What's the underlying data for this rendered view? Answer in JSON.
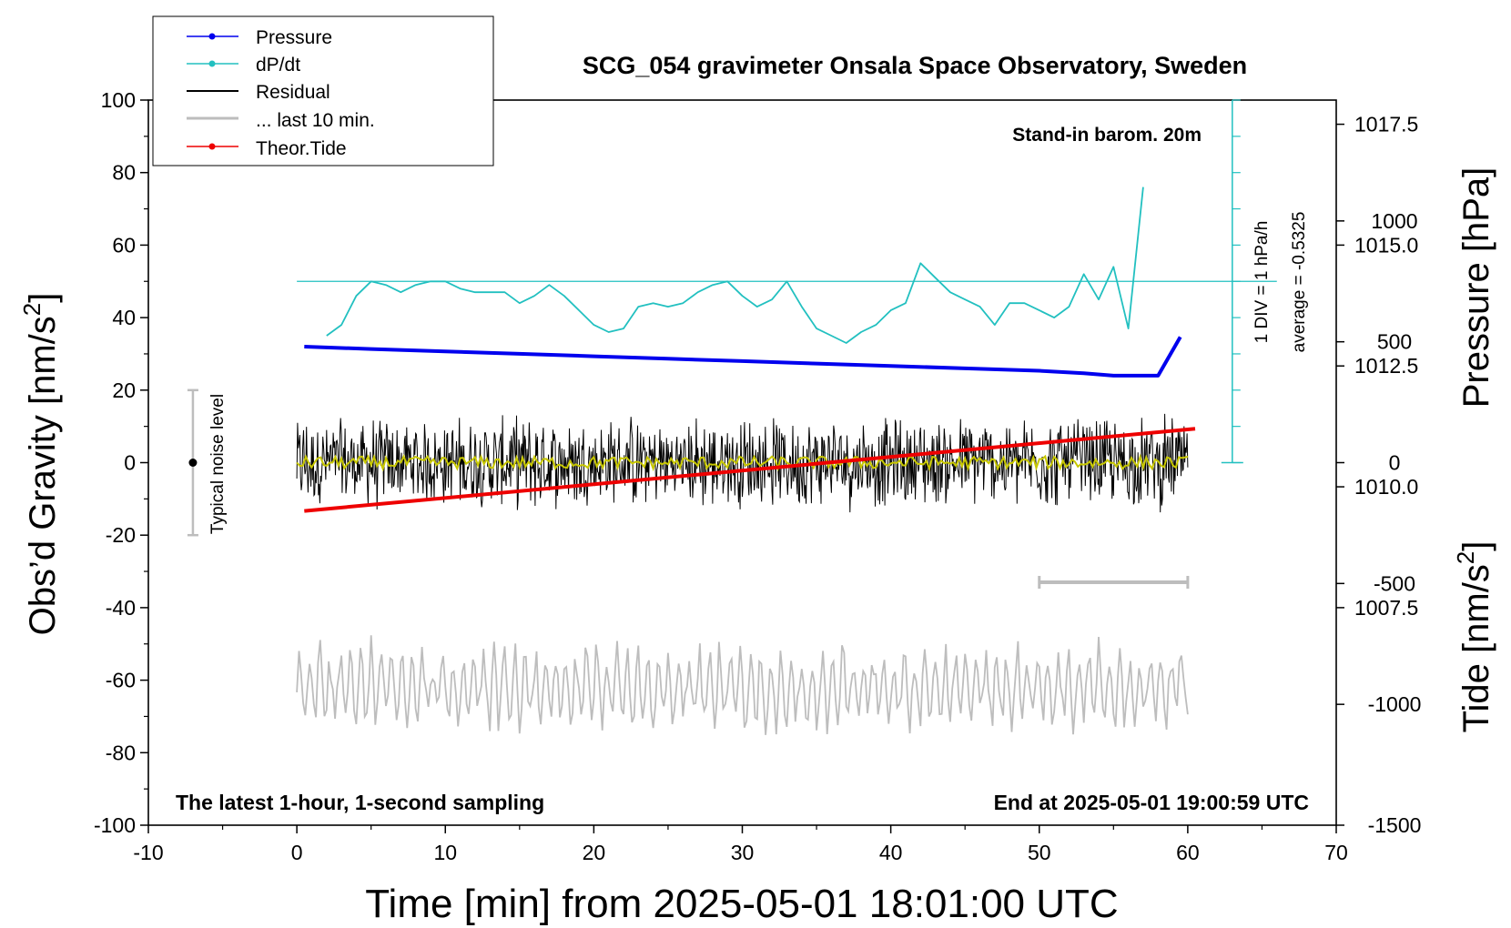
{
  "chart_data": {
    "type": "line",
    "title": "SCG_054 gravimeter Onsala Space Observatory, Sweden",
    "xlabel": "Time [min] from 2025-05-01 18:01:00 UTC",
    "ylabel_left": "Obs’d Gravity [nm/s²]",
    "ylabel_left_base": "Obs’d Gravity [nm/s",
    "ylabel_right_top": "Pressure [hPa]",
    "ylabel_right_bottom_base": "Tide [nm/s",
    "superscript": "2",
    "closing_bracket": "]",
    "xlim": [
      -10,
      70
    ],
    "ylim_left": [
      -100,
      100
    ],
    "x_ticks": [
      "-10",
      "0",
      "10",
      "20",
      "30",
      "40",
      "50",
      "60",
      "70"
    ],
    "y_ticks_left": [
      "100",
      "80",
      "60",
      "40",
      "20",
      "0",
      "-20",
      "-40",
      "-60",
      "-80",
      "-100"
    ],
    "y_ticks_pressure": [
      "1017.5",
      "1015.0",
      "1012.5",
      "1010.0",
      "1007.5"
    ],
    "y_ticks_tide": [
      "1000",
      "500",
      "0",
      "-500",
      "-1000",
      "-1500"
    ],
    "pressure_ylim": [
      1003.0,
      1018.0
    ],
    "tide_ylim": [
      -1500,
      1500
    ],
    "annotations": {
      "stand_in": "Stand-in barom. 20m",
      "dpdt_scale": "1 DIV = 1 hPa/h",
      "dpdt_average": "average = -0.5325",
      "noise": "Typical noise level",
      "latest": "The latest 1-hour, 1-second sampling",
      "end": "End at 2025-05-01 19:00:59 UTC"
    },
    "legend": {
      "placement": "top-left",
      "entries": [
        "Pressure",
        "dP/dt",
        "Residual",
        "... last 10 min.",
        "Theor.Tide"
      ]
    },
    "colors": {
      "pressure": "#0000ee",
      "dpdt": "#22c0c0",
      "residual": "#000000",
      "residual_smoothed": "#c8c800",
      "last10": "#bdbdbd",
      "tide": "#ee0000"
    },
    "series": [
      {
        "name": "Pressure",
        "x": [
          0.5,
          5,
          10,
          15,
          20,
          25,
          30,
          35,
          40,
          45,
          50,
          53,
          55,
          56,
          57,
          58,
          59.5
        ],
        "y": [
          1012.9,
          1012.85,
          1012.8,
          1012.75,
          1012.7,
          1012.65,
          1012.6,
          1012.55,
          1012.5,
          1012.45,
          1012.4,
          1012.35,
          1012.3,
          1012.3,
          1012.3,
          1012.3,
          1013.1
        ]
      },
      {
        "name": "dP/dt",
        "x": [
          2,
          3,
          4,
          5,
          6,
          7,
          8,
          9,
          10,
          11,
          12,
          13,
          14,
          15,
          16,
          17,
          18,
          19,
          20,
          21,
          22,
          23,
          24,
          25,
          26,
          27,
          28,
          29,
          30,
          31,
          32,
          33,
          34,
          35,
          36,
          37,
          38,
          39,
          40,
          41,
          42,
          43,
          44,
          45,
          46,
          47,
          48,
          49,
          50,
          51,
          52,
          53,
          54,
          55,
          56,
          57
        ],
        "y": [
          35,
          38,
          46,
          50,
          49,
          47,
          49,
          50,
          50,
          48,
          47,
          47,
          47,
          44,
          46,
          49,
          46,
          42,
          38,
          36,
          37,
          43,
          44,
          43,
          44,
          47,
          49,
          50,
          46,
          43,
          45,
          50,
          43,
          37,
          35,
          33,
          36,
          38,
          42,
          44,
          55,
          51,
          47,
          45,
          43,
          38,
          44,
          44,
          42,
          40,
          43,
          52,
          45,
          54,
          37,
          76
        ]
      },
      {
        "name": "Residual",
        "x": [
          0,
          60
        ],
        "y": [
          0,
          0
        ]
      },
      {
        "name": "... last 10 min.",
        "x": [
          0,
          60
        ],
        "y": [
          -62,
          -62
        ]
      },
      {
        "name": "Theor.Tide",
        "x": [
          0.5,
          60.5
        ],
        "y": [
          -200,
          140
        ]
      }
    ],
    "noise_bar": {
      "x": -7,
      "y_center": 0,
      "y_range": [
        -20,
        20
      ]
    },
    "scale_bar": {
      "x": [
        50,
        60
      ],
      "y": -33
    },
    "dpdt_axis": {
      "x": 63,
      "y_top": 100,
      "y_zero": 50,
      "y_bottom": 0
    }
  }
}
